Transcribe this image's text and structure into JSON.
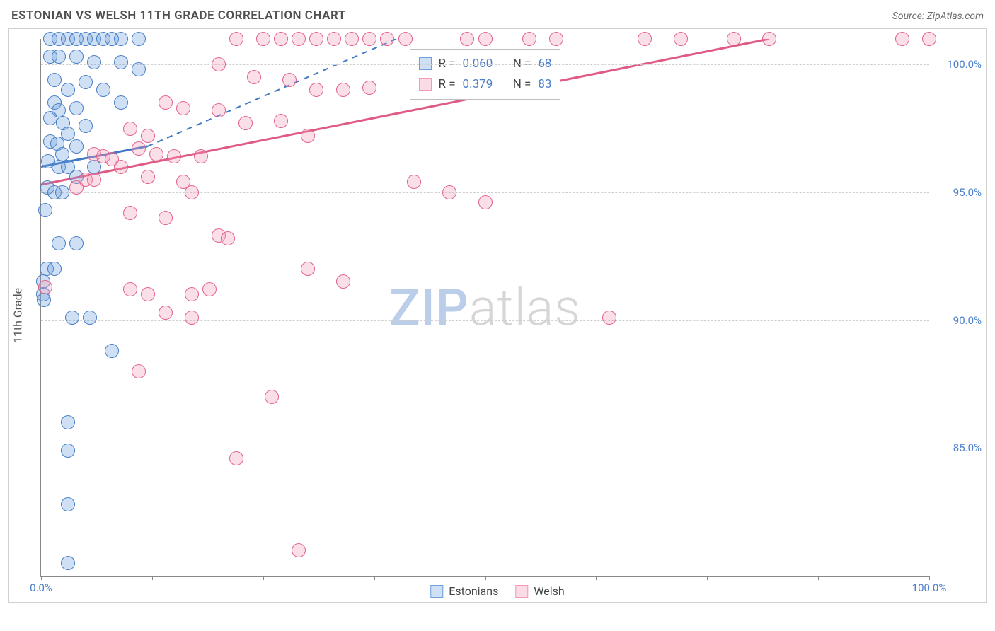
{
  "title": "ESTONIAN VS WELSH 11TH GRADE CORRELATION CHART",
  "source": "Source: ZipAtlas.com",
  "ylabel": "11th Grade",
  "watermark_a": "ZIP",
  "watermark_b": "atlas",
  "type": "scatter",
  "background_color": "#ffffff",
  "grid_color": "#cfcfcf",
  "axis_color": "#888888",
  "tick_label_color": "#4a7fc9",
  "xlim": [
    0,
    100
  ],
  "ylim": [
    80,
    101
  ],
  "x_ticks": [
    0,
    12.5,
    25,
    37.5,
    50,
    62.5,
    75,
    87.5,
    100
  ],
  "x_tick_labels": {
    "0": "0.0%",
    "100": "100.0%"
  },
  "y_grid": [
    85,
    90,
    95,
    100
  ],
  "y_grid_labels": {
    "85": "85.0%",
    "90": "90.0%",
    "95": "95.0%",
    "100": "100.0%"
  },
  "marker_radius": 10,
  "marker_fill_opacity": 0.32,
  "marker_stroke_opacity": 0.95,
  "series": {
    "estonians": {
      "label": "Estonians",
      "color": "#6ea0de",
      "stroke": "#3f78c4",
      "R": "0.060",
      "N": "68",
      "trend_solid": {
        "x1": 0,
        "y1": 96.0,
        "x2": 12,
        "y2": 96.8
      },
      "trend_dashed": {
        "x1": 12,
        "y1": 96.8,
        "x2": 40,
        "y2": 101
      },
      "points": [
        [
          1,
          101
        ],
        [
          2,
          101
        ],
        [
          3,
          101
        ],
        [
          4,
          101
        ],
        [
          5,
          101
        ],
        [
          6,
          101
        ],
        [
          7,
          101
        ],
        [
          8,
          101
        ],
        [
          9,
          101
        ],
        [
          11,
          101
        ],
        [
          1,
          100.3
        ],
        [
          2,
          100.3
        ],
        [
          4,
          100.3
        ],
        [
          6,
          100.1
        ],
        [
          9,
          100.1
        ],
        [
          11,
          99.8
        ],
        [
          1.5,
          99.4
        ],
        [
          5,
          99.3
        ],
        [
          3,
          99.0
        ],
        [
          7,
          99.0
        ],
        [
          1.5,
          98.5
        ],
        [
          2,
          98.2
        ],
        [
          4,
          98.3
        ],
        [
          9,
          98.5
        ],
        [
          1,
          97.9
        ],
        [
          2.5,
          97.7
        ],
        [
          5,
          97.6
        ],
        [
          3,
          97.3
        ],
        [
          1,
          97.0
        ],
        [
          1.8,
          96.9
        ],
        [
          4,
          96.8
        ],
        [
          2.4,
          96.5
        ],
        [
          0.8,
          96.2
        ],
        [
          2,
          96.0
        ],
        [
          3,
          96.0
        ],
        [
          4,
          95.6
        ],
        [
          6,
          96.0
        ],
        [
          0.7,
          95.2
        ],
        [
          1.5,
          95.0
        ],
        [
          2.4,
          95.0
        ],
        [
          0.5,
          94.3
        ],
        [
          2,
          93.0
        ],
        [
          4,
          93.0
        ],
        [
          0.6,
          92.0
        ],
        [
          1.5,
          92.0
        ],
        [
          0.2,
          91.5
        ],
        [
          0.2,
          91.0
        ],
        [
          0.3,
          90.8
        ],
        [
          3.5,
          90.1
        ],
        [
          5.5,
          90.1
        ],
        [
          8,
          88.8
        ],
        [
          3,
          86.0
        ],
        [
          3,
          84.9
        ],
        [
          3,
          82.8
        ],
        [
          3,
          80.5
        ]
      ]
    },
    "welsh": {
      "label": "Welsh",
      "color": "#f29bb6",
      "stroke": "#e05b84",
      "R": "0.379",
      "N": "83",
      "trend_solid": {
        "x1": 0,
        "y1": 95.3,
        "x2": 82,
        "y2": 101
      },
      "trend_dashed": null,
      "points": [
        [
          22,
          101
        ],
        [
          25,
          101
        ],
        [
          27,
          101
        ],
        [
          29,
          101
        ],
        [
          31,
          101
        ],
        [
          33,
          101
        ],
        [
          35,
          101
        ],
        [
          37,
          101
        ],
        [
          39,
          101
        ],
        [
          41,
          101
        ],
        [
          48,
          101
        ],
        [
          50,
          101
        ],
        [
          55,
          101
        ],
        [
          58,
          101
        ],
        [
          68,
          101
        ],
        [
          72,
          101
        ],
        [
          78,
          101
        ],
        [
          82,
          101
        ],
        [
          97,
          101
        ],
        [
          100,
          101
        ],
        [
          20,
          100.0
        ],
        [
          24,
          99.5
        ],
        [
          28,
          99.4
        ],
        [
          31,
          99.0
        ],
        [
          34,
          99.0
        ],
        [
          37,
          99.1
        ],
        [
          14,
          98.5
        ],
        [
          16,
          98.3
        ],
        [
          20,
          98.2
        ],
        [
          23,
          97.7
        ],
        [
          27,
          97.8
        ],
        [
          30,
          97.2
        ],
        [
          10,
          97.5
        ],
        [
          12,
          97.2
        ],
        [
          11,
          96.7
        ],
        [
          13,
          96.5
        ],
        [
          15,
          96.4
        ],
        [
          18,
          96.4
        ],
        [
          6,
          96.5
        ],
        [
          7,
          96.4
        ],
        [
          8,
          96.3
        ],
        [
          9,
          96.0
        ],
        [
          12,
          95.6
        ],
        [
          16,
          95.4
        ],
        [
          4,
          95.2
        ],
        [
          5,
          95.5
        ],
        [
          6,
          95.5
        ],
        [
          17,
          95.0
        ],
        [
          42,
          95.4
        ],
        [
          46,
          95.0
        ],
        [
          50,
          94.6
        ],
        [
          10,
          94.2
        ],
        [
          14,
          94.0
        ],
        [
          20,
          93.3
        ],
        [
          21,
          93.2
        ],
        [
          30,
          92.0
        ],
        [
          34,
          91.5
        ],
        [
          10,
          91.2
        ],
        [
          12,
          91.0
        ],
        [
          17,
          91.0
        ],
        [
          19,
          91.2
        ],
        [
          0.5,
          91.3
        ],
        [
          14,
          90.3
        ],
        [
          17,
          90.1
        ],
        [
          64,
          90.1
        ],
        [
          11,
          88.0
        ],
        [
          26,
          87.0
        ],
        [
          22,
          84.6
        ],
        [
          29,
          81.0
        ]
      ]
    }
  },
  "stats_box": [
    {
      "swatch_fill": "#cfe0f5",
      "swatch_stroke": "#6ea0de",
      "R_label": "R =",
      "R": "0.060",
      "N_label": "N =",
      "N": "68"
    },
    {
      "swatch_fill": "#fbdbe5",
      "swatch_stroke": "#f29bb6",
      "R_label": "R =",
      "R": "0.379",
      "N_label": "N =",
      "N": "83"
    }
  ],
  "bottom_legend": [
    {
      "swatch_fill": "#cfe0f5",
      "swatch_stroke": "#6ea0de",
      "label": "Estonians"
    },
    {
      "swatch_fill": "#fbdbe5",
      "swatch_stroke": "#f29bb6",
      "label": "Welsh"
    }
  ]
}
